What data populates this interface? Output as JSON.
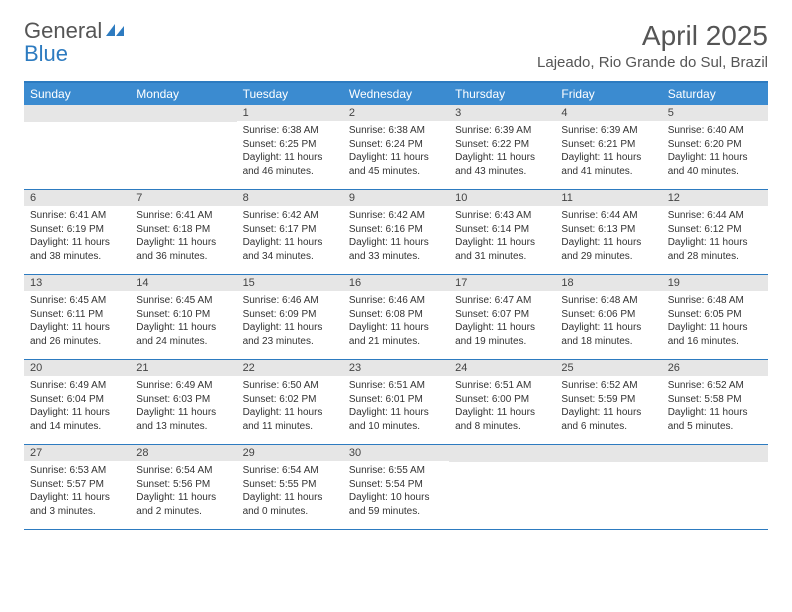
{
  "brand": {
    "part1": "General",
    "part2": "Blue"
  },
  "title": "April 2025",
  "location": "Lajeado, Rio Grande do Sul, Brazil",
  "colors": {
    "header_bg": "#3b8bd0",
    "border": "#2d7bc0",
    "daynum_bg": "#e6e6e6",
    "text": "#333333",
    "title_text": "#555555"
  },
  "weekdays": [
    "Sunday",
    "Monday",
    "Tuesday",
    "Wednesday",
    "Thursday",
    "Friday",
    "Saturday"
  ],
  "first_weekday_index": 2,
  "days": [
    {
      "n": 1,
      "sunrise": "6:38 AM",
      "sunset": "6:25 PM",
      "daylight": "11 hours and 46 minutes."
    },
    {
      "n": 2,
      "sunrise": "6:38 AM",
      "sunset": "6:24 PM",
      "daylight": "11 hours and 45 minutes."
    },
    {
      "n": 3,
      "sunrise": "6:39 AM",
      "sunset": "6:22 PM",
      "daylight": "11 hours and 43 minutes."
    },
    {
      "n": 4,
      "sunrise": "6:39 AM",
      "sunset": "6:21 PM",
      "daylight": "11 hours and 41 minutes."
    },
    {
      "n": 5,
      "sunrise": "6:40 AM",
      "sunset": "6:20 PM",
      "daylight": "11 hours and 40 minutes."
    },
    {
      "n": 6,
      "sunrise": "6:41 AM",
      "sunset": "6:19 PM",
      "daylight": "11 hours and 38 minutes."
    },
    {
      "n": 7,
      "sunrise": "6:41 AM",
      "sunset": "6:18 PM",
      "daylight": "11 hours and 36 minutes."
    },
    {
      "n": 8,
      "sunrise": "6:42 AM",
      "sunset": "6:17 PM",
      "daylight": "11 hours and 34 minutes."
    },
    {
      "n": 9,
      "sunrise": "6:42 AM",
      "sunset": "6:16 PM",
      "daylight": "11 hours and 33 minutes."
    },
    {
      "n": 10,
      "sunrise": "6:43 AM",
      "sunset": "6:14 PM",
      "daylight": "11 hours and 31 minutes."
    },
    {
      "n": 11,
      "sunrise": "6:44 AM",
      "sunset": "6:13 PM",
      "daylight": "11 hours and 29 minutes."
    },
    {
      "n": 12,
      "sunrise": "6:44 AM",
      "sunset": "6:12 PM",
      "daylight": "11 hours and 28 minutes."
    },
    {
      "n": 13,
      "sunrise": "6:45 AM",
      "sunset": "6:11 PM",
      "daylight": "11 hours and 26 minutes."
    },
    {
      "n": 14,
      "sunrise": "6:45 AM",
      "sunset": "6:10 PM",
      "daylight": "11 hours and 24 minutes."
    },
    {
      "n": 15,
      "sunrise": "6:46 AM",
      "sunset": "6:09 PM",
      "daylight": "11 hours and 23 minutes."
    },
    {
      "n": 16,
      "sunrise": "6:46 AM",
      "sunset": "6:08 PM",
      "daylight": "11 hours and 21 minutes."
    },
    {
      "n": 17,
      "sunrise": "6:47 AM",
      "sunset": "6:07 PM",
      "daylight": "11 hours and 19 minutes."
    },
    {
      "n": 18,
      "sunrise": "6:48 AM",
      "sunset": "6:06 PM",
      "daylight": "11 hours and 18 minutes."
    },
    {
      "n": 19,
      "sunrise": "6:48 AM",
      "sunset": "6:05 PM",
      "daylight": "11 hours and 16 minutes."
    },
    {
      "n": 20,
      "sunrise": "6:49 AM",
      "sunset": "6:04 PM",
      "daylight": "11 hours and 14 minutes."
    },
    {
      "n": 21,
      "sunrise": "6:49 AM",
      "sunset": "6:03 PM",
      "daylight": "11 hours and 13 minutes."
    },
    {
      "n": 22,
      "sunrise": "6:50 AM",
      "sunset": "6:02 PM",
      "daylight": "11 hours and 11 minutes."
    },
    {
      "n": 23,
      "sunrise": "6:51 AM",
      "sunset": "6:01 PM",
      "daylight": "11 hours and 10 minutes."
    },
    {
      "n": 24,
      "sunrise": "6:51 AM",
      "sunset": "6:00 PM",
      "daylight": "11 hours and 8 minutes."
    },
    {
      "n": 25,
      "sunrise": "6:52 AM",
      "sunset": "5:59 PM",
      "daylight": "11 hours and 6 minutes."
    },
    {
      "n": 26,
      "sunrise": "6:52 AM",
      "sunset": "5:58 PM",
      "daylight": "11 hours and 5 minutes."
    },
    {
      "n": 27,
      "sunrise": "6:53 AM",
      "sunset": "5:57 PM",
      "daylight": "11 hours and 3 minutes."
    },
    {
      "n": 28,
      "sunrise": "6:54 AM",
      "sunset": "5:56 PM",
      "daylight": "11 hours and 2 minutes."
    },
    {
      "n": 29,
      "sunrise": "6:54 AM",
      "sunset": "5:55 PM",
      "daylight": "11 hours and 0 minutes."
    },
    {
      "n": 30,
      "sunrise": "6:55 AM",
      "sunset": "5:54 PM",
      "daylight": "10 hours and 59 minutes."
    }
  ],
  "labels": {
    "sunrise": "Sunrise:",
    "sunset": "Sunset:",
    "daylight": "Daylight:"
  }
}
